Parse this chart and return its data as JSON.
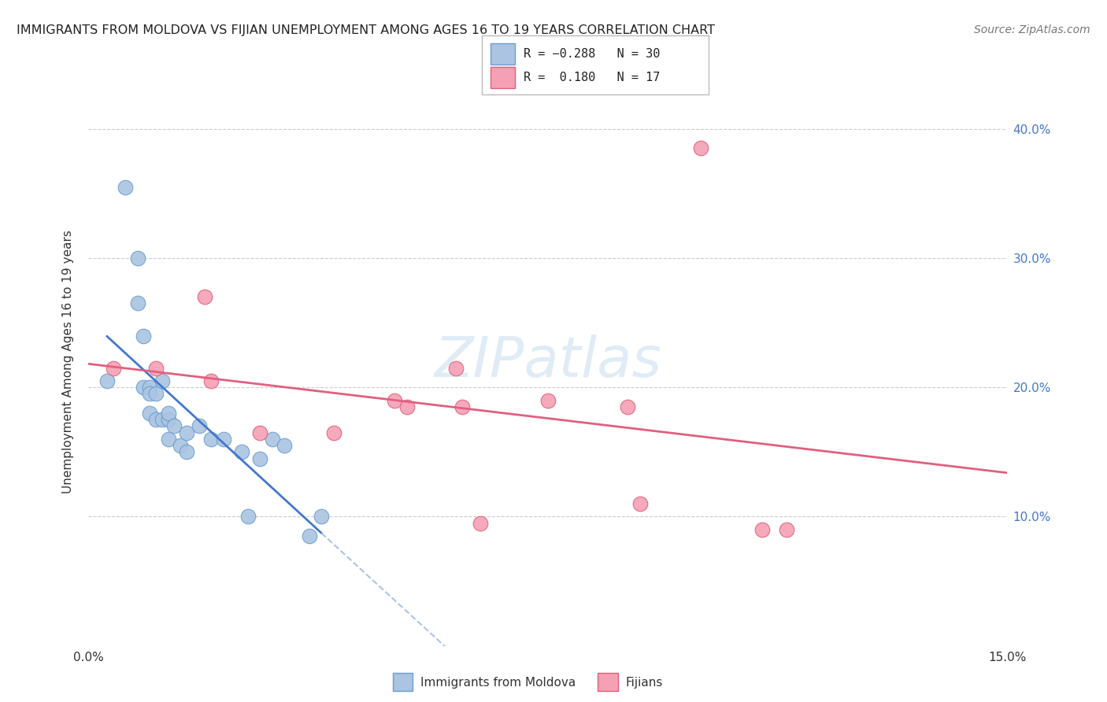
{
  "title": "IMMIGRANTS FROM MOLDOVA VS FIJIAN UNEMPLOYMENT AMONG AGES 16 TO 19 YEARS CORRELATION CHART",
  "source": "Source: ZipAtlas.com",
  "ylabel": "Unemployment Among Ages 16 to 19 years",
  "xlim": [
    0.0,
    0.15
  ],
  "ylim": [
    0.0,
    0.44
  ],
  "x_ticks": [
    0.0,
    0.025,
    0.05,
    0.075,
    0.1,
    0.125,
    0.15
  ],
  "y_ticks": [
    0.0,
    0.1,
    0.2,
    0.3,
    0.4
  ],
  "y_tick_labels": [
    "",
    "10.0%",
    "20.0%",
    "30.0%",
    "40.0%"
  ],
  "grid_color": "#cccccc",
  "background_color": "#ffffff",
  "watermark": "ZIPatlas",
  "legend_r1_val": "-0.288",
  "legend_n1_val": "30",
  "legend_r2_val": "0.180",
  "legend_n2_val": "17",
  "moldova_color": "#aac4e2",
  "fijian_color": "#f5a0b5",
  "moldova_edge": "#6a9fd0",
  "fijian_edge": "#e0607a",
  "trend_moldova_solid_color": "#4477cc",
  "trend_moldova_dash_color": "#88aade",
  "trend_fijian_color": "#e06080",
  "moldova_x": [
    0.003,
    0.006,
    0.008,
    0.008,
    0.009,
    0.009,
    0.01,
    0.01,
    0.01,
    0.011,
    0.011,
    0.012,
    0.012,
    0.013,
    0.013,
    0.013,
    0.014,
    0.015,
    0.016,
    0.016,
    0.018,
    0.02,
    0.022,
    0.025,
    0.026,
    0.028,
    0.03,
    0.032,
    0.036,
    0.038
  ],
  "moldova_y": [
    0.205,
    0.355,
    0.3,
    0.265,
    0.24,
    0.2,
    0.2,
    0.195,
    0.18,
    0.195,
    0.175,
    0.205,
    0.175,
    0.175,
    0.18,
    0.16,
    0.17,
    0.155,
    0.165,
    0.15,
    0.17,
    0.16,
    0.16,
    0.15,
    0.1,
    0.145,
    0.16,
    0.155,
    0.085,
    0.1
  ],
  "fijian_x": [
    0.004,
    0.011,
    0.019,
    0.02,
    0.028,
    0.04,
    0.05,
    0.052,
    0.06,
    0.061,
    0.064,
    0.075,
    0.088,
    0.09,
    0.1,
    0.11,
    0.114
  ],
  "fijian_y": [
    0.215,
    0.215,
    0.27,
    0.205,
    0.165,
    0.165,
    0.19,
    0.185,
    0.215,
    0.185,
    0.095,
    0.19,
    0.185,
    0.11,
    0.385,
    0.09,
    0.09
  ]
}
